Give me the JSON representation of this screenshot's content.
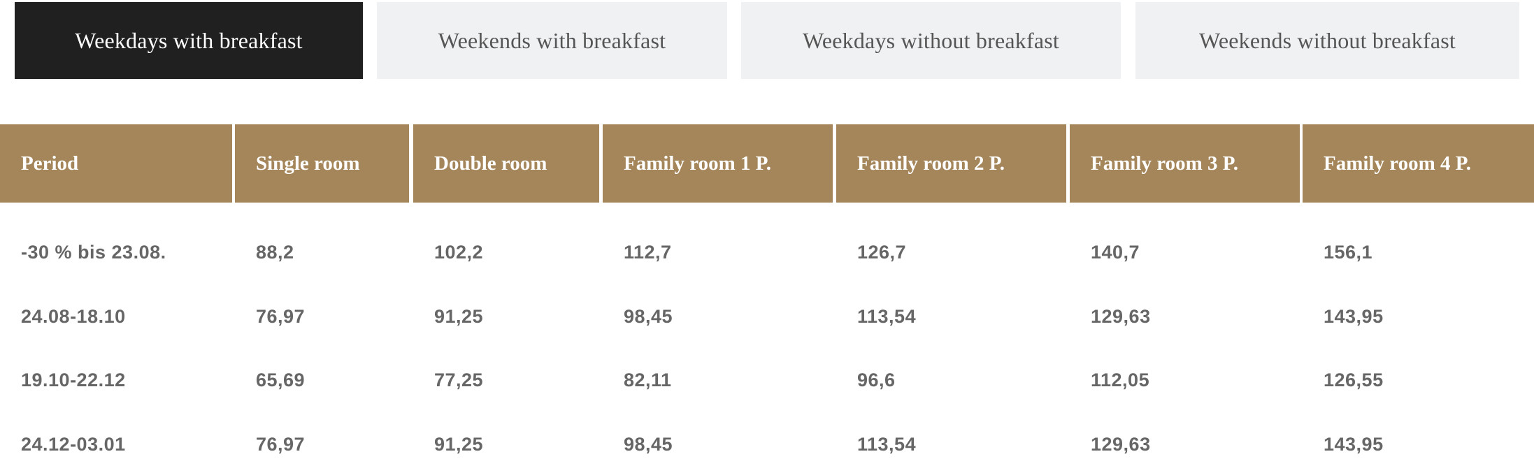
{
  "tabs": [
    {
      "label": "Weekdays with breakfast",
      "active": true
    },
    {
      "label": "Weekends with breakfast",
      "active": false
    },
    {
      "label": "Weekdays without breakfast",
      "active": false
    },
    {
      "label": "Weekends without breakfast",
      "active": false
    }
  ],
  "colors": {
    "header_bg": "#a5865a",
    "active_tab_bg": "#202020",
    "inactive_tab_bg": "#f0f1f3",
    "cell_text": "#666666"
  },
  "table": {
    "headers": [
      "Period",
      "Single room",
      "Double room",
      "Family room 1 P.",
      "Family room 2 P.",
      "Family room 3 P.",
      "Family room 4 P."
    ],
    "rows": [
      [
        "-30 % bis 23.08.",
        "88,2",
        "102,2",
        "112,7",
        "126,7",
        "140,7",
        "156,1"
      ],
      [
        "24.08-18.10",
        "76,97",
        "91,25",
        "98,45",
        "113,54",
        "129,63",
        "143,95"
      ],
      [
        "19.10-22.12",
        "65,69",
        "77,25",
        "82,11",
        "96,6",
        "112,05",
        "126,55"
      ],
      [
        "24.12-03.01",
        "76,97",
        "91,25",
        "98,45",
        "113,54",
        "129,63",
        "143,95"
      ]
    ]
  }
}
